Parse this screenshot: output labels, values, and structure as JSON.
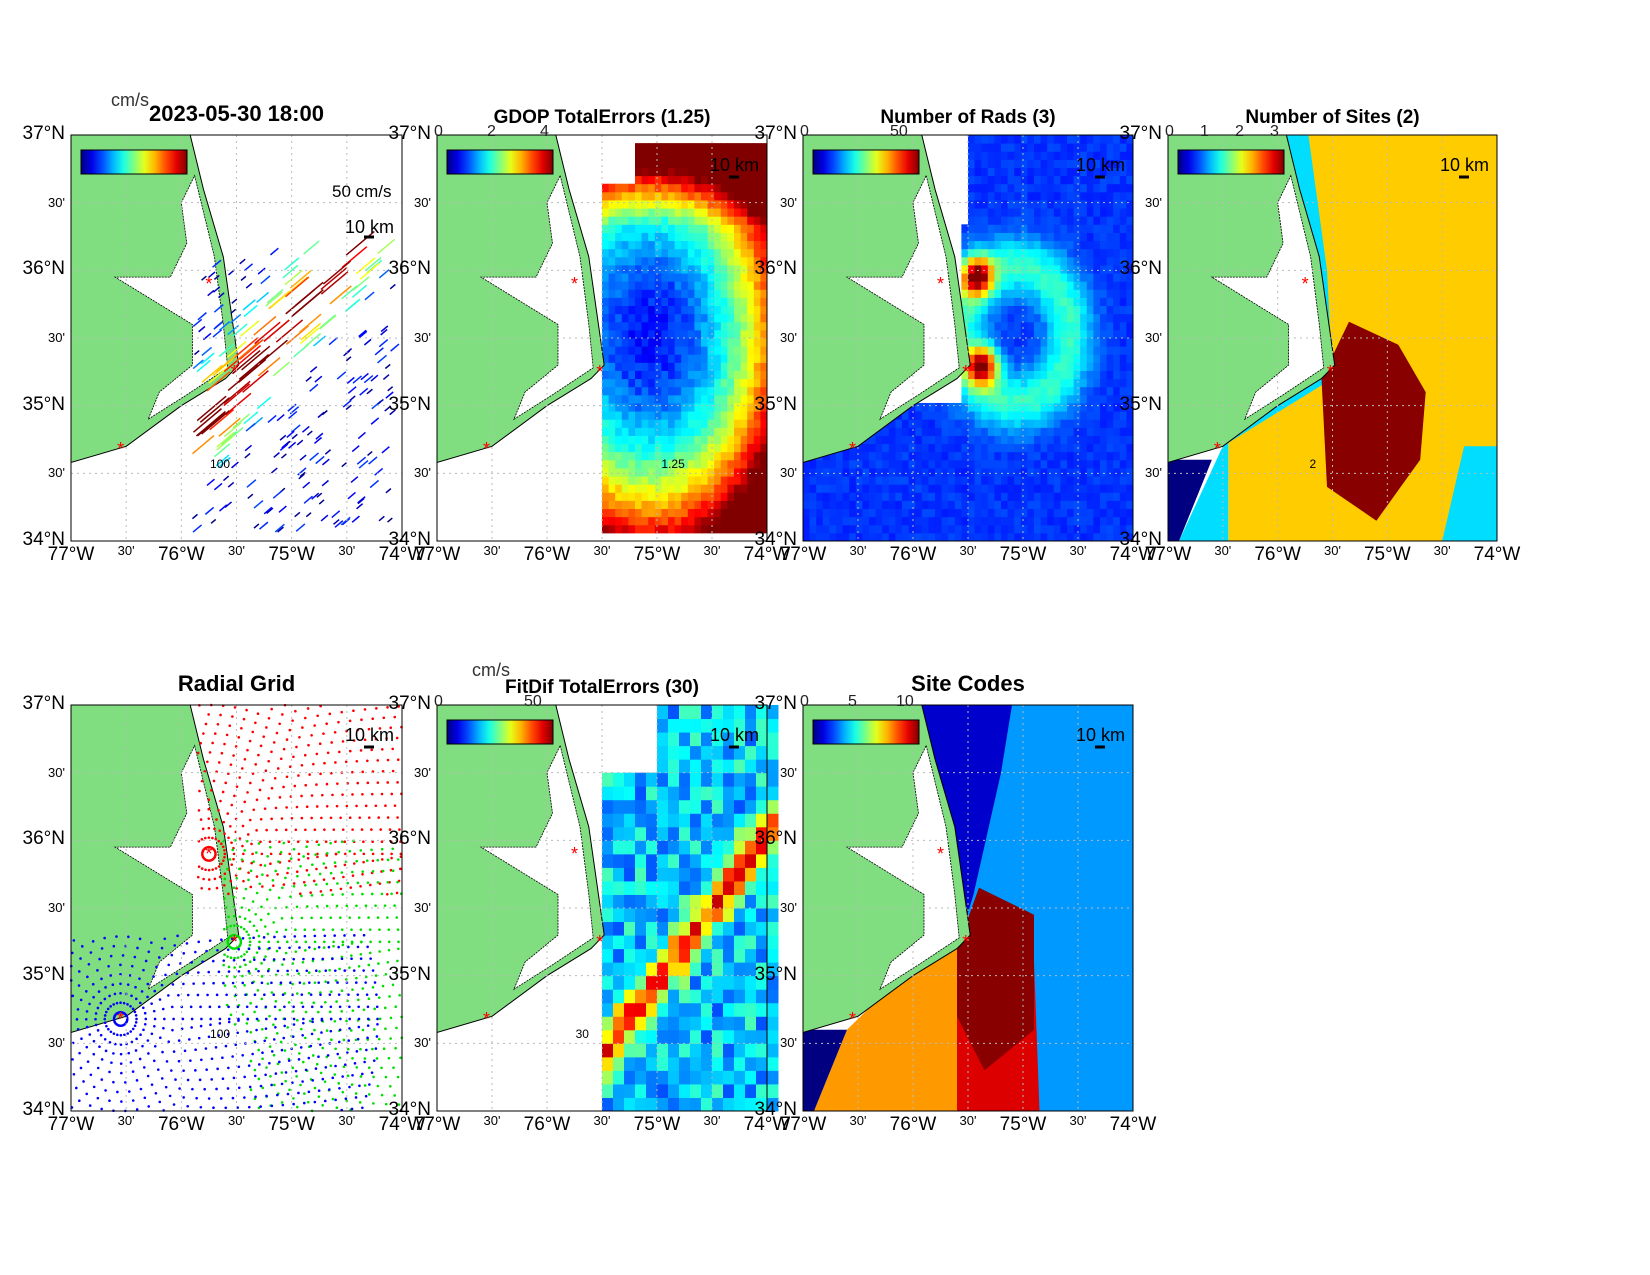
{
  "axes": {
    "lat_labels": [
      "37°N",
      "30'",
      "36°N",
      "30'",
      "35°N",
      "30'",
      "34°N"
    ],
    "lon_labels": [
      "77°W",
      "30'",
      "76°W",
      "30'",
      "75°W",
      "30'",
      "74°W"
    ],
    "lat_range": [
      34,
      37
    ],
    "lon_range": [
      -77,
      -74
    ]
  },
  "scale_label": "10 km",
  "colors": {
    "land": "#80dd80",
    "ocean": "#ffffff",
    "site": "#ff0000"
  },
  "panels": [
    {
      "id": "totals",
      "title": "2023-05-30 18:00",
      "unit": "cm/s",
      "cbar_ticks": [],
      "ref_vector": "50 cm/s",
      "contour_label": "100"
    },
    {
      "id": "gdop",
      "title": "GDOP TotalErrors (1.25)",
      "cbar_ticks": [
        "0",
        "2",
        "4"
      ],
      "contour_label": "1.25"
    },
    {
      "id": "nrads",
      "title": "Number of Rads (3)",
      "cbar_ticks": [
        "0",
        "50"
      ]
    },
    {
      "id": "nsites",
      "title": "Number of Sites (2)",
      "cbar_ticks": [
        "0",
        "1",
        "2",
        "3"
      ],
      "contour_label": "2"
    },
    {
      "id": "radgrid",
      "title": "Radial Grid",
      "cbar_ticks": [],
      "contour_label": "100"
    },
    {
      "id": "fitdif",
      "title": "FitDif TotalErrors (30)",
      "unit": "cm/s",
      "cbar_ticks": [
        "0",
        "50"
      ],
      "contour_label": "30"
    },
    {
      "id": "sitecodes",
      "title": "Site Codes",
      "cbar_ticks": [
        "0",
        "5",
        "10"
      ]
    }
  ]
}
